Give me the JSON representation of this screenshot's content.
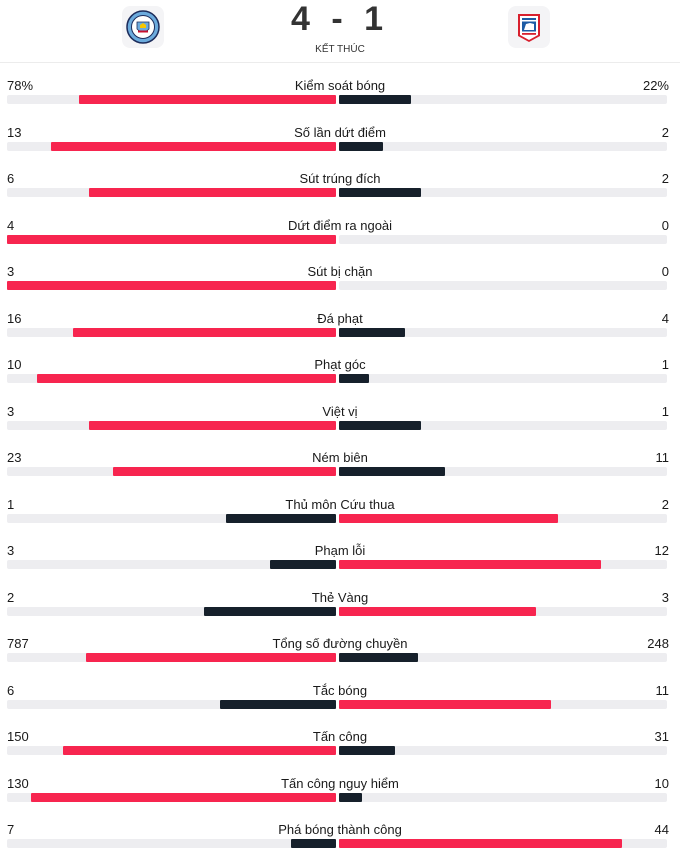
{
  "match": {
    "home_logo_icon": "manchester-city-crest-icon",
    "away_logo_icon": "ipswich-town-crest-icon",
    "score": "4 - 1",
    "status": "KẾT THÚC"
  },
  "colors": {
    "leader": "#f7254f",
    "trailer": "#16202b",
    "track": "#ededf0"
  },
  "stats": [
    {
      "label": "Kiểm soát bóng",
      "home": "78%",
      "away": "22%",
      "home_num": 78,
      "away_num": 22
    },
    {
      "label": "Số lần dứt điểm",
      "home": "13",
      "away": "2",
      "home_num": 13,
      "away_num": 2
    },
    {
      "label": "Sút trúng đích",
      "home": "6",
      "away": "2",
      "home_num": 6,
      "away_num": 2
    },
    {
      "label": "Dứt điểm ra ngoài",
      "home": "4",
      "away": "0",
      "home_num": 4,
      "away_num": 0
    },
    {
      "label": "Sút bị chặn",
      "home": "3",
      "away": "0",
      "home_num": 3,
      "away_num": 0
    },
    {
      "label": "Đá phạt",
      "home": "16",
      "away": "4",
      "home_num": 16,
      "away_num": 4
    },
    {
      "label": "Phạt góc",
      "home": "10",
      "away": "1",
      "home_num": 10,
      "away_num": 1
    },
    {
      "label": "Việt vị",
      "home": "3",
      "away": "1",
      "home_num": 3,
      "away_num": 1
    },
    {
      "label": "Ném biên",
      "home": "23",
      "away": "11",
      "home_num": 23,
      "away_num": 11
    },
    {
      "label": "Thủ môn Cứu thua",
      "home": "1",
      "away": "2",
      "home_num": 1,
      "away_num": 2
    },
    {
      "label": "Phạm lỗi",
      "home": "3",
      "away": "12",
      "home_num": 3,
      "away_num": 12
    },
    {
      "label": "Thẻ Vàng",
      "home": "2",
      "away": "3",
      "home_num": 2,
      "away_num": 3
    },
    {
      "label": "Tổng số đường chuyền",
      "home": "787",
      "away": "248",
      "home_num": 787,
      "away_num": 248
    },
    {
      "label": "Tắc bóng",
      "home": "6",
      "away": "11",
      "home_num": 6,
      "away_num": 11
    },
    {
      "label": "Tấn công",
      "home": "150",
      "away": "31",
      "home_num": 150,
      "away_num": 31
    },
    {
      "label": "Tấn công nguy hiểm",
      "home": "130",
      "away": "10",
      "home_num": 130,
      "away_num": 10
    },
    {
      "label": "Phá bóng thành công",
      "home": "7",
      "away": "44",
      "home_num": 7,
      "away_num": 44
    }
  ]
}
